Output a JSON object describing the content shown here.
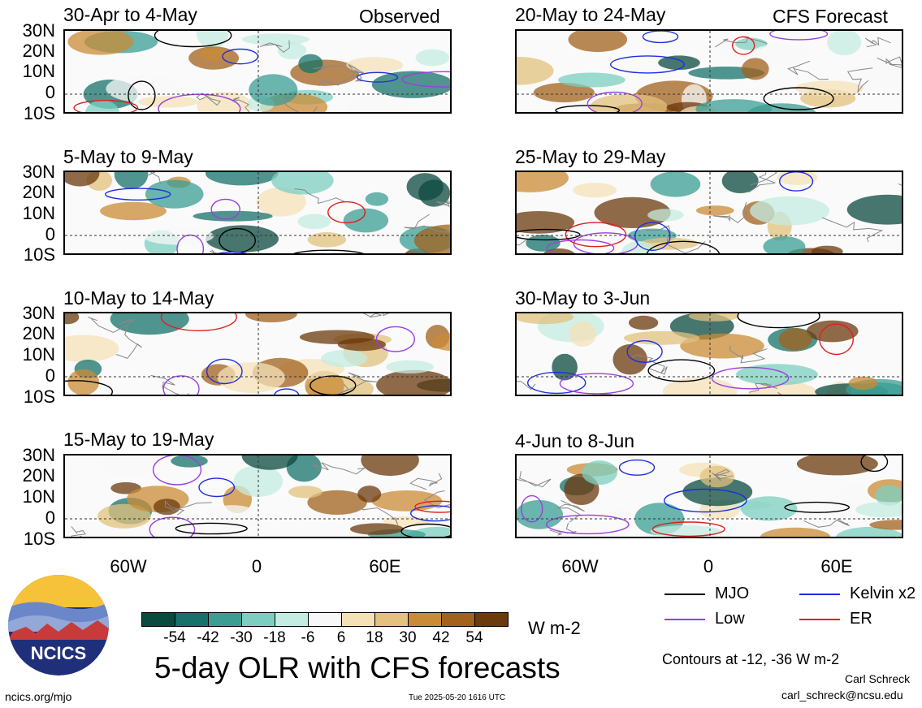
{
  "panels": {
    "observed_label": "Observed",
    "forecast_label": "CFS Forecast",
    "left": [
      {
        "title": "30-Apr to 4-May"
      },
      {
        "title": "5-May to 9-May"
      },
      {
        "title": "10-May to 14-May"
      },
      {
        "title": "15-May to 19-May"
      }
    ],
    "right": [
      {
        "title": "20-May to 24-May"
      },
      {
        "title": "25-May to 29-May"
      },
      {
        "title": "30-May to 3-Jun"
      },
      {
        "title": "4-Jun to 8-Jun"
      }
    ]
  },
  "axes": {
    "lat_labels": [
      "30N",
      "20N",
      "10N",
      "0",
      "10S"
    ],
    "lon_labels": [
      "60W",
      "0",
      "60E"
    ]
  },
  "colorbar": {
    "ticks": [
      "-54",
      "-42",
      "-30",
      "-18",
      "-6",
      "6",
      "18",
      "30",
      "42",
      "54"
    ],
    "colors": [
      "#0b4a3f",
      "#16726a",
      "#3a9e93",
      "#7ccfc0",
      "#c4ece2",
      "#f8f8f8",
      "#f4e1b8",
      "#e2c27e",
      "#c98b35",
      "#a2621c",
      "#6b3a0d"
    ],
    "unit": "W m-2"
  },
  "legend": {
    "items": [
      {
        "label": "MJO",
        "color": "#000000"
      },
      {
        "label": "Kelvin x2",
        "color": "#1e2ee0"
      },
      {
        "label": "Low",
        "color": "#9b3fe0"
      },
      {
        "label": "ER",
        "color": "#e01e1e"
      }
    ],
    "contour_note": "Contours at -12, -36 W m-2"
  },
  "title": "5-day OLR with CFS forecasts",
  "footer": {
    "url": "ncics.org/mjo",
    "timestamp": "Tue 2025-05-20 1616 UTC",
    "author": "Carl Schreck",
    "email": "carl_schreck@ncsu.edu"
  },
  "logo": {
    "text": "NCICS"
  }
}
